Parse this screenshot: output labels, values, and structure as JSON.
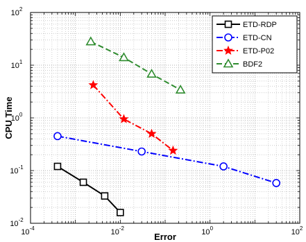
{
  "chart_data": {
    "type": "line",
    "title": "",
    "xlabel": "Error",
    "ylabel": "CPU Time",
    "xscale": "log",
    "yscale": "log",
    "xlim": [
      0.0001,
      100
    ],
    "ylim": [
      0.01,
      100
    ],
    "x_ticks": [
      {
        "base": "10",
        "exp": "-4",
        "value": 0.0001
      },
      {
        "base": "10",
        "exp": "-2",
        "value": 0.01
      },
      {
        "base": "10",
        "exp": "0",
        "value": 1
      },
      {
        "base": "10",
        "exp": "2",
        "value": 100
      }
    ],
    "y_ticks": [
      {
        "base": "10",
        "exp": "-2",
        "value": 0.01
      },
      {
        "base": "10",
        "exp": "-1",
        "value": 0.1
      },
      {
        "base": "10",
        "exp": "0",
        "value": 1
      },
      {
        "base": "10",
        "exp": "1",
        "value": 10
      },
      {
        "base": "10",
        "exp": "2",
        "value": 100
      }
    ],
    "grid": true,
    "legend_position": "top-right",
    "series": [
      {
        "name": "ETD-RDP",
        "color": "#000000",
        "marker": "square",
        "linestyle": "solid",
        "x": [
          0.0004,
          0.0015,
          0.0045,
          0.01
        ],
        "y": [
          0.12,
          0.06,
          0.033,
          0.016
        ]
      },
      {
        "name": "ETD-CN",
        "color": "#0000ff",
        "marker": "circle",
        "linestyle": "dashdot",
        "x": [
          0.0004,
          0.03,
          2,
          30
        ],
        "y": [
          0.45,
          0.23,
          0.12,
          0.058
        ]
      },
      {
        "name": "ETD-P02",
        "color": "#ff0000",
        "marker": "star",
        "linestyle": "dashdot",
        "x": [
          0.0025,
          0.012,
          0.05,
          0.15
        ],
        "y": [
          4.2,
          0.95,
          0.5,
          0.24
        ]
      },
      {
        "name": "BDF2",
        "color": "#2e8b2e",
        "marker": "triangle",
        "linestyle": "dashed",
        "x": [
          0.0022,
          0.012,
          0.05,
          0.22
        ],
        "y": [
          28,
          14,
          6.8,
          3.4
        ]
      }
    ]
  }
}
